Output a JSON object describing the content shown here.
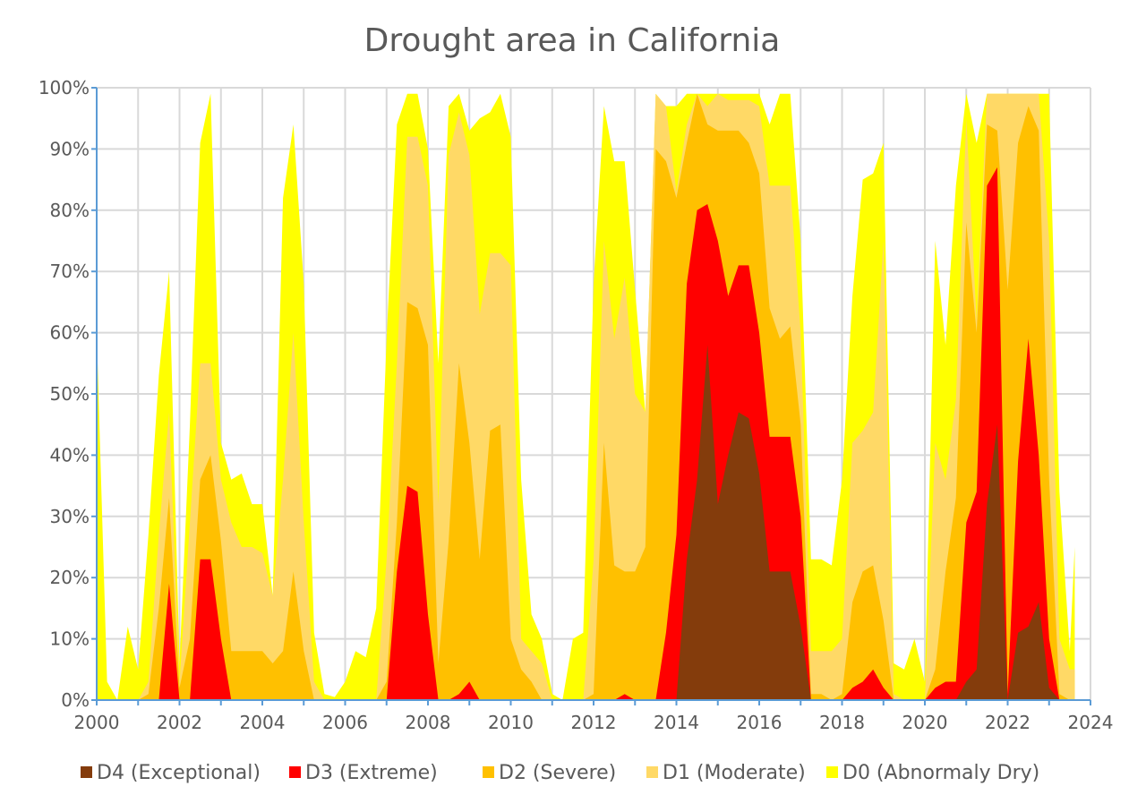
{
  "chart_data": {
    "type": "area",
    "title": "Drought area in California",
    "xlabel": "",
    "ylabel": "",
    "xlim": [
      2000,
      2024
    ],
    "ylim": [
      0,
      100
    ],
    "x_ticks": [
      2000,
      2002,
      2004,
      2006,
      2008,
      2010,
      2012,
      2014,
      2016,
      2018,
      2020,
      2022,
      2024
    ],
    "y_ticks": [
      "0%",
      "10%",
      "20%",
      "30%",
      "40%",
      "50%",
      "60%",
      "70%",
      "80%",
      "90%",
      "100%"
    ],
    "grid": true,
    "legend_position": "bottom",
    "x": [
      2000.0,
      2000.25,
      2000.5,
      2000.75,
      2001.0,
      2001.25,
      2001.5,
      2001.75,
      2002.0,
      2002.25,
      2002.5,
      2002.75,
      2003.0,
      2003.25,
      2003.5,
      2003.75,
      2004.0,
      2004.25,
      2004.5,
      2004.75,
      2005.0,
      2005.25,
      2005.5,
      2005.75,
      2006.0,
      2006.25,
      2006.5,
      2006.75,
      2007.0,
      2007.25,
      2007.5,
      2007.75,
      2008.0,
      2008.25,
      2008.5,
      2008.75,
      2009.0,
      2009.25,
      2009.5,
      2009.75,
      2010.0,
      2010.25,
      2010.5,
      2010.75,
      2011.0,
      2011.25,
      2011.5,
      2011.75,
      2012.0,
      2012.25,
      2012.5,
      2012.75,
      2013.0,
      2013.25,
      2013.5,
      2013.75,
      2014.0,
      2014.25,
      2014.5,
      2014.75,
      2015.0,
      2015.25,
      2015.5,
      2015.75,
      2016.0,
      2016.25,
      2016.5,
      2016.75,
      2017.0,
      2017.25,
      2017.5,
      2017.75,
      2018.0,
      2018.25,
      2018.5,
      2018.75,
      2019.0,
      2019.25,
      2019.5,
      2019.75,
      2020.0,
      2020.25,
      2020.5,
      2020.75,
      2021.0,
      2021.25,
      2021.5,
      2021.75,
      2022.0,
      2022.25,
      2022.5,
      2022.75,
      2023.0,
      2023.25,
      2023.5,
      2023.62
    ],
    "series": [
      {
        "name": "D0 (Abnormaly Dry)",
        "color": "#ffff00",
        "values": [
          60,
          3,
          0,
          12,
          5,
          27,
          53,
          70,
          6,
          45,
          91,
          99,
          42,
          36,
          37,
          32,
          32,
          17,
          82,
          94,
          68,
          11,
          1,
          0.5,
          3,
          8,
          7,
          15,
          59,
          94,
          99,
          99,
          90,
          55,
          97,
          99,
          93,
          95,
          96,
          99,
          92,
          36,
          14,
          10,
          1,
          0,
          10,
          11,
          68,
          97,
          88,
          88,
          67,
          47,
          99,
          97,
          97,
          99,
          99,
          99,
          99,
          99,
          99,
          99,
          99,
          94,
          99,
          99,
          75,
          23,
          23,
          22,
          36,
          66,
          85,
          86,
          91,
          6,
          5,
          10,
          3,
          75,
          58,
          84,
          99,
          91,
          99,
          99,
          99,
          99,
          99,
          99,
          99,
          34,
          8,
          25
        ]
      },
      {
        "name": "D1 (Moderate)",
        "color": "#ffd966",
        "values": [
          0,
          0,
          0,
          0,
          0,
          3,
          27,
          47,
          3,
          29,
          55,
          55,
          36,
          29,
          25,
          25,
          24,
          17,
          36,
          60,
          29,
          3,
          0,
          0,
          0,
          0,
          0,
          0,
          23,
          55,
          92,
          92,
          84,
          32,
          89,
          96,
          89,
          63,
          73,
          73,
          71,
          10,
          8,
          6,
          0,
          0,
          0,
          0,
          23,
          75,
          59,
          69,
          50,
          47,
          99,
          97,
          83,
          94,
          99,
          97,
          99,
          98,
          98,
          98,
          97,
          84,
          84,
          84,
          60,
          8,
          8,
          8,
          10,
          42,
          44,
          47,
          75,
          1,
          0,
          0,
          0,
          42,
          36,
          49,
          95,
          62,
          99,
          99,
          99,
          99,
          99,
          99,
          75,
          10,
          5,
          5
        ]
      },
      {
        "name": "D2 (Severe)",
        "color": "#ffc000",
        "values": [
          0,
          0,
          0,
          0,
          0,
          1,
          15,
          33,
          2,
          10,
          36,
          40,
          26,
          8,
          8,
          8,
          8,
          6,
          8,
          21,
          8,
          0,
          0,
          0,
          0,
          0,
          0,
          0,
          3,
          29,
          65,
          64,
          58,
          6,
          26,
          55,
          42,
          23,
          44,
          45,
          10,
          5,
          3,
          0,
          0,
          0,
          0,
          0,
          1,
          42,
          22,
          21,
          21,
          25,
          90,
          88,
          82,
          91,
          99,
          94,
          93,
          93,
          93,
          91,
          86,
          64,
          59,
          61,
          45,
          1,
          1,
          0,
          1,
          16,
          21,
          22,
          13,
          0,
          0,
          0,
          0,
          5,
          21,
          33,
          78,
          60,
          94,
          93,
          67,
          91,
          97,
          93,
          36,
          1,
          0,
          0
        ]
      },
      {
        "name": "D3 (Extreme)",
        "color": "#ff0000",
        "values": [
          0,
          0,
          0,
          0,
          0,
          0,
          0,
          19,
          0,
          0,
          23,
          23,
          10,
          0,
          0,
          0,
          0,
          0,
          0,
          0,
          0,
          0,
          0,
          0,
          0,
          0,
          0,
          0,
          0,
          21,
          35,
          34,
          14,
          0,
          0,
          1,
          3,
          0,
          0,
          0,
          0,
          0,
          0,
          0,
          0,
          0,
          0,
          0,
          0,
          0,
          0,
          1,
          0,
          0,
          0,
          11,
          27,
          68,
          80,
          81,
          75,
          66,
          71,
          71,
          60,
          43,
          43,
          43,
          30,
          0,
          0,
          0,
          0,
          2,
          3,
          5,
          2,
          0,
          0,
          0,
          0,
          2,
          3,
          3,
          29,
          34,
          84,
          87,
          1,
          39,
          59,
          40,
          10,
          0,
          0,
          0
        ]
      },
      {
        "name": "D4 (Exceptional)",
        "color": "#843c0c",
        "values": [
          0,
          0,
          0,
          0,
          0,
          0,
          0,
          0,
          0,
          0,
          0,
          0,
          0,
          0,
          0,
          0,
          0,
          0,
          0,
          0,
          0,
          0,
          0,
          0,
          0,
          0,
          0,
          0,
          0,
          0,
          0,
          0,
          0,
          0,
          0,
          0,
          0,
          0,
          0,
          0,
          0,
          0,
          0,
          0,
          0,
          0,
          0,
          0,
          0,
          0,
          0,
          0,
          0,
          0,
          0,
          0,
          0,
          23,
          36,
          58,
          32,
          40,
          47,
          46,
          37,
          21,
          21,
          21,
          12,
          0,
          0,
          0,
          0,
          0,
          0,
          0,
          0,
          0,
          0,
          0,
          0,
          0,
          0,
          0,
          3,
          5,
          32,
          45,
          0,
          11,
          12,
          16,
          2,
          0,
          0,
          0
        ]
      }
    ],
    "legend": [
      "D4 (Exceptional)",
      "D3 (Extreme)",
      "D2 (Severe)",
      "D1 (Moderate)",
      "D0 (Abnormaly Dry)"
    ]
  }
}
